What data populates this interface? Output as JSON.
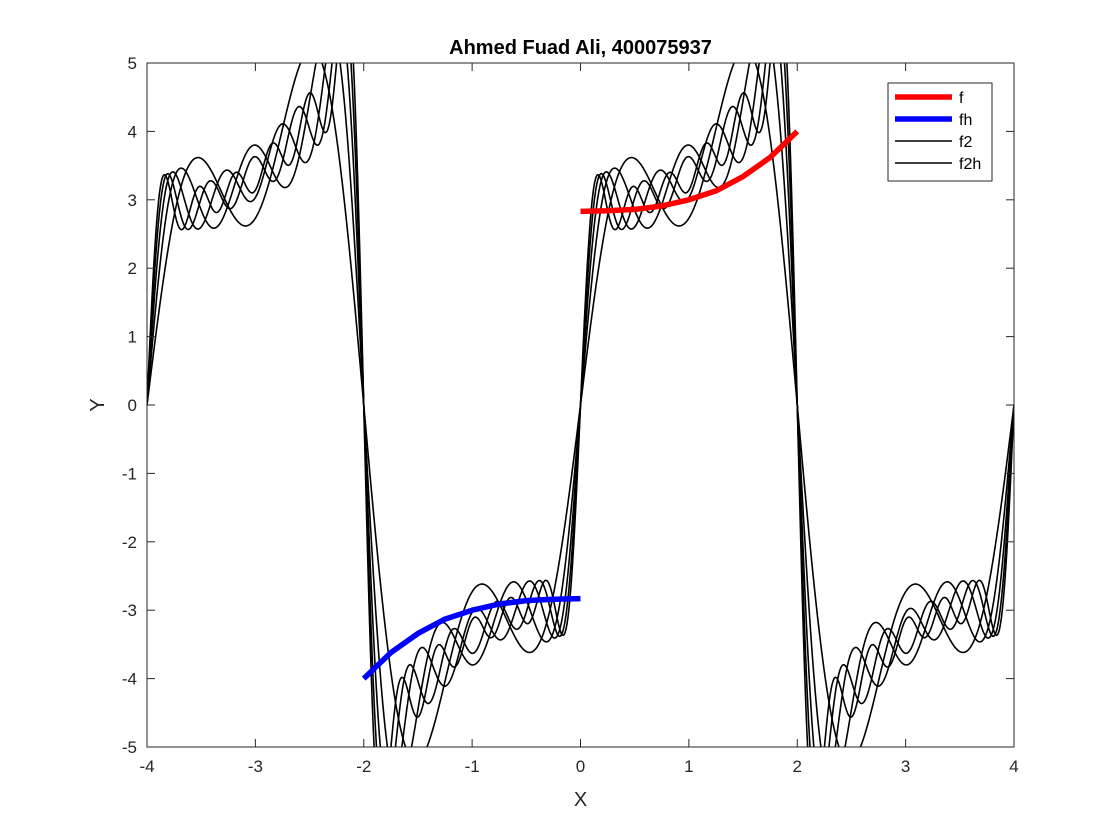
{
  "chart_data": {
    "type": "line",
    "title": "Ahmed Fuad Ali, 400075937",
    "xlabel": "X",
    "ylabel": "Y",
    "xlim": [
      -4,
      4
    ],
    "ylim": [
      -5,
      5
    ],
    "xticks": [
      -4,
      -3,
      -2,
      -1,
      0,
      1,
      2,
      3,
      4
    ],
    "yticks": [
      -5,
      -4,
      -3,
      -2,
      -1,
      0,
      1,
      2,
      3,
      4,
      5
    ],
    "grid": false,
    "legend_position": "top-right",
    "series": [
      {
        "name": "f",
        "color": "#ff0000",
        "x": [
          0,
          0.25,
          0.5,
          0.75,
          1,
          1.25,
          1.5,
          1.75,
          2
        ],
        "y": [
          2.83,
          2.84,
          2.86,
          2.91,
          3.0,
          3.13,
          3.34,
          3.62,
          4.0
        ]
      },
      {
        "name": "fh",
        "color": "#0000ff",
        "x": [
          -2,
          -1.75,
          -1.5,
          -1.25,
          -1,
          -0.75,
          -0.5,
          -0.25,
          0
        ],
        "y": [
          -4.0,
          -3.62,
          -3.34,
          -3.13,
          -3.0,
          -2.91,
          -2.86,
          -2.84,
          -2.83
        ]
      },
      {
        "name": "f2",
        "color": "#000000",
        "harmonics": [
          3,
          5,
          7,
          9,
          11
        ],
        "period": 4,
        "x_range": [
          -4,
          4
        ]
      },
      {
        "name": "f2h",
        "color": "#000000"
      }
    ]
  }
}
